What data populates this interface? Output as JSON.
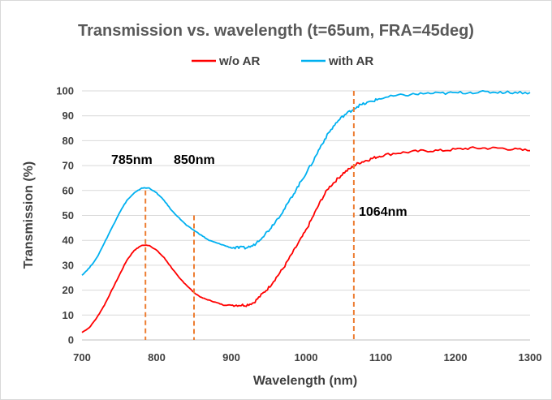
{
  "chart_data": {
    "type": "line",
    "title": "Transmission vs. wavelength (t=65um, FRA=45deg)",
    "xlabel": "Wavelength (nm)",
    "ylabel": "Transmission (%)",
    "xlim": [
      700,
      1300
    ],
    "ylim": [
      0,
      100
    ],
    "xticks": [
      700,
      800,
      900,
      1000,
      1100,
      1200,
      1300
    ],
    "yticks": [
      0,
      10,
      20,
      30,
      40,
      50,
      60,
      70,
      80,
      90,
      100
    ],
    "grid": true,
    "legend_position": "top",
    "series": [
      {
        "name": "w/o AR",
        "color": "#ff0000",
        "x": [
          700,
          710,
          720,
          730,
          740,
          750,
          760,
          770,
          780,
          790,
          800,
          810,
          820,
          830,
          840,
          850,
          860,
          870,
          880,
          890,
          900,
          910,
          920,
          930,
          940,
          950,
          960,
          970,
          980,
          990,
          1000,
          1010,
          1020,
          1030,
          1040,
          1050,
          1060,
          1070,
          1080,
          1090,
          1100,
          1120,
          1140,
          1160,
          1180,
          1200,
          1220,
          1240,
          1260,
          1280,
          1300
        ],
        "values": [
          3,
          5,
          9,
          14,
          20,
          26,
          32,
          36,
          38,
          38,
          36,
          33,
          29,
          25,
          22,
          19,
          17,
          16,
          15,
          14,
          14,
          14,
          14,
          15,
          18,
          21,
          25,
          29,
          34,
          39,
          44,
          50,
          56,
          61,
          64,
          67,
          69,
          71,
          72,
          73,
          74,
          75,
          75.5,
          76,
          76,
          76.5,
          77,
          77,
          77,
          76.5,
          76
        ]
      },
      {
        "name": "with AR",
        "color": "#00b0f0",
        "x": [
          700,
          710,
          720,
          730,
          740,
          750,
          760,
          770,
          780,
          790,
          800,
          810,
          820,
          830,
          840,
          850,
          860,
          870,
          880,
          890,
          900,
          910,
          920,
          930,
          940,
          950,
          960,
          970,
          980,
          990,
          1000,
          1010,
          1020,
          1030,
          1040,
          1050,
          1060,
          1070,
          1080,
          1090,
          1100,
          1120,
          1140,
          1160,
          1180,
          1200,
          1220,
          1240,
          1260,
          1280,
          1300
        ],
        "values": [
          26,
          29,
          33,
          39,
          45,
          51,
          56,
          59,
          61,
          61,
          59,
          56,
          52,
          49,
          46,
          44,
          42,
          40,
          39,
          38,
          37,
          37,
          37,
          38,
          41,
          44,
          48,
          52,
          57,
          62,
          67,
          72,
          78,
          83,
          87,
          90,
          92,
          94,
          95,
          96,
          97,
          98,
          98.5,
          99,
          99,
          99.2,
          99.4,
          99.5,
          99.5,
          99.4,
          99.3
        ]
      }
    ],
    "markers": [
      {
        "label": "785nm",
        "x": 785
      },
      {
        "label": "850nm",
        "x": 850
      },
      {
        "label": "1064nm",
        "x": 1064
      }
    ]
  }
}
